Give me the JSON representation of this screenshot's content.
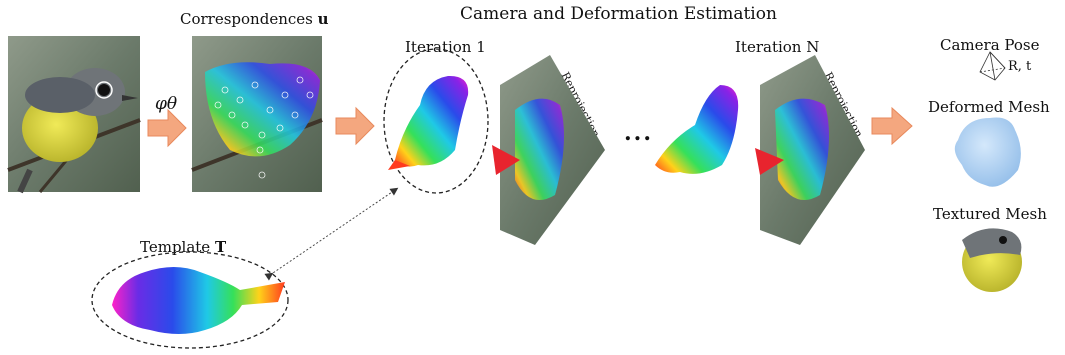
{
  "title": "Camera and Deformation Estimation",
  "labels": {
    "correspondences": "Correspondences",
    "correspondences_symbol": "u",
    "phi_theta": "φθ",
    "iteration_1": "Iteration 1",
    "iteration_n": "Iteration N",
    "reprojection": "Reprojection",
    "ellipsis": "...",
    "template": "Template",
    "template_symbol": "T",
    "camera_pose": "Camera Pose",
    "camera_pose_params": "R, t",
    "deformed_mesh": "Deformed Mesh",
    "textured_mesh": "Textured Mesh"
  },
  "colors": {
    "arrow": "#f4a77f",
    "arrow_stroke": "#e8895c",
    "photo_bg": "#6b7a6a",
    "bird_yellow": "#d9d43a",
    "bird_gray": "#6f7478",
    "mesh_blue": "#a9cdf0",
    "camera_red": "#e8242e"
  }
}
